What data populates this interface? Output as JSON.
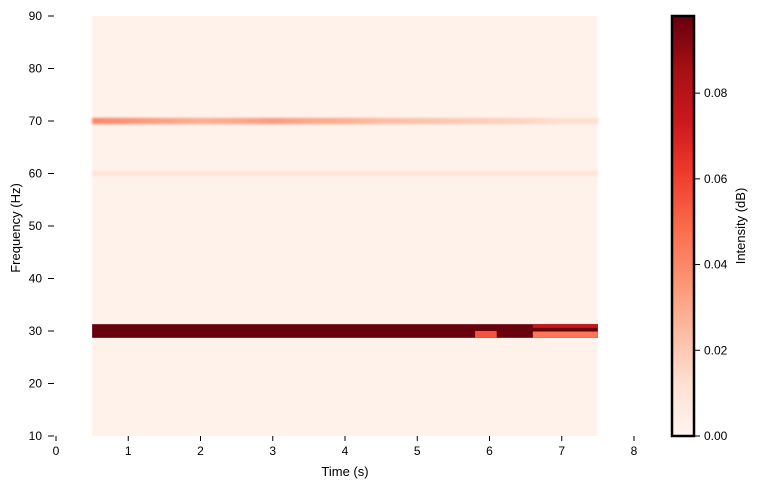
{
  "chart_data": {
    "type": "heatmap",
    "title": "",
    "xlabel": "Time (s)",
    "ylabel": "Frequency (Hz)",
    "xlim": [
      0,
      8
    ],
    "ylim": [
      10,
      90
    ],
    "xticks": [
      0,
      1,
      2,
      3,
      4,
      5,
      6,
      7,
      8
    ],
    "yticks": [
      10,
      20,
      30,
      40,
      50,
      60,
      70,
      80,
      90
    ],
    "data_extent": {
      "time": [
        0.5,
        7.5
      ],
      "frequency": [
        10,
        90
      ]
    },
    "colorbar": {
      "label": "Intensity (dB)",
      "colormap": "Reds",
      "range": [
        0,
        0.098
      ],
      "ticks": [
        0.0,
        0.02,
        0.04,
        0.06,
        0.08
      ],
      "tick_labels": [
        "0.00",
        "0.02",
        "0.04",
        "0.06",
        "0.08"
      ]
    },
    "background_intensity": 0.002,
    "bands": [
      {
        "frequency_range": [
          28.7,
          31.3
        ],
        "intensity": 0.098,
        "segments": [
          {
            "time_range": [
              5.8,
              6.1
            ],
            "frequency_range": [
              28.7,
              30.0
            ],
            "intensity": 0.055
          },
          {
            "time_range": [
              6.6,
              7.5
            ],
            "frequency_range": [
              28.7,
              29.9
            ],
            "intensity": 0.045
          },
          {
            "time_range": [
              6.6,
              7.5
            ],
            "frequency_range": [
              30.6,
              31.3
            ],
            "intensity": 0.075
          }
        ]
      },
      {
        "frequency_range": [
          69.4,
          70.6
        ],
        "intensity_over_time": [
          [
            0.5,
            0.04
          ],
          [
            1.0,
            0.036
          ],
          [
            1.5,
            0.032
          ],
          [
            2.0,
            0.028
          ],
          [
            2.5,
            0.03
          ],
          [
            3.0,
            0.034
          ],
          [
            3.5,
            0.03
          ],
          [
            4.0,
            0.028
          ],
          [
            4.5,
            0.024
          ],
          [
            5.0,
            0.022
          ],
          [
            5.5,
            0.02
          ],
          [
            6.0,
            0.018
          ],
          [
            6.5,
            0.016
          ],
          [
            7.0,
            0.012
          ],
          [
            7.5,
            0.012
          ]
        ]
      },
      {
        "frequency_range": [
          59.5,
          60.5
        ],
        "intensity": 0.01
      }
    ]
  }
}
